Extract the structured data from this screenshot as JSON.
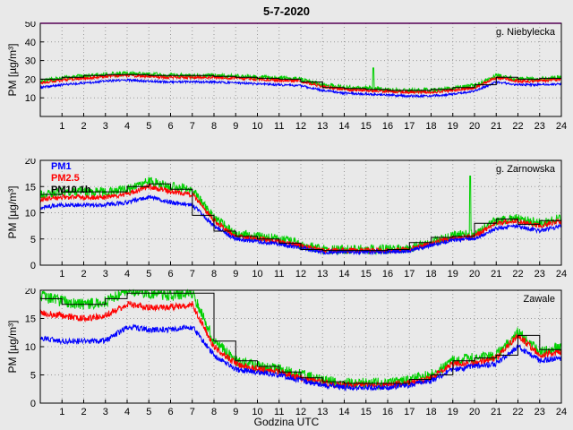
{
  "chart_data": {
    "type": "line",
    "title": "5-7-2020",
    "xlabel": "Godzina UTC",
    "ylabel": "PM [µg/m³]",
    "x_unit": "hour of day (UTC), 0-24",
    "xticks": [
      1,
      2,
      3,
      4,
      5,
      6,
      7,
      8,
      9,
      10,
      11,
      12,
      13,
      14,
      15,
      16,
      17,
      18,
      19,
      20,
      21,
      22,
      23,
      24
    ],
    "colors": {
      "grid": "#999999",
      "limit": "#ff00ff",
      "pm1": "#0000ff",
      "pm25": "#ff0000",
      "pm10": "#00d000",
      "pm10_1h": "#000000"
    },
    "legend": [
      {
        "label": "PM1",
        "color": "#0000ff"
      },
      {
        "label": "PM2.5",
        "color": "#ff0000"
      },
      {
        "label": "PM10 1h",
        "color": "#000000"
      }
    ],
    "panels": [
      {
        "station": "g. Niebylecka",
        "ylim": [
          0,
          50
        ],
        "yticks": [
          10,
          20,
          30,
          40,
          50
        ],
        "limit_line": 50,
        "series": [
          {
            "name": "PM10",
            "color": "#00d000",
            "noise": 1.3,
            "anchors": [
              19,
              20.5,
              21.5,
              22.5,
              23,
              22.5,
              22,
              22,
              22,
              21.5,
              21,
              20.5,
              20,
              17,
              15.5,
              15,
              14.5,
              14,
              14,
              15,
              16.5,
              22,
              20,
              20,
              21
            ],
            "spikes": [
              {
                "t": 15.35,
                "v": 26
              }
            ]
          },
          {
            "name": "PM2.5",
            "color": "#ff0000",
            "noise": 0.8,
            "anchors": [
              18,
              19.5,
              20.5,
              21.5,
              22,
              21.5,
              21,
              21,
              21,
              20.5,
              20,
              19.5,
              19,
              16,
              14.5,
              14,
              13.5,
              13,
              13,
              14,
              15.5,
              21,
              19,
              19,
              20
            ]
          },
          {
            "name": "PM1",
            "color": "#0000ff",
            "noise": 0.6,
            "anchors": [
              15.5,
              17,
              18,
              19,
              19.5,
              19,
              18.5,
              18.5,
              18.5,
              18,
              17.5,
              17,
              16.5,
              14,
              12.5,
              12,
              11.5,
              11,
              11,
              12,
              13.5,
              18.5,
              17,
              17,
              17.5
            ]
          },
          {
            "name": "PM10 1h",
            "color": "#000000",
            "type": "step",
            "values": [
              20,
              21,
              22,
              22.5,
              22.5,
              22,
              22,
              22,
              21.5,
              21,
              20.5,
              20,
              18.5,
              15.5,
              15,
              14.5,
              14,
              14,
              14.5,
              15.5,
              17,
              21,
              20,
              20.5
            ]
          }
        ]
      },
      {
        "station": "g. Zarnowska",
        "ylim": [
          0,
          20
        ],
        "yticks": [
          0,
          5,
          10,
          15,
          20
        ],
        "limit_line": null,
        "series": [
          {
            "name": "PM10",
            "color": "#00d000",
            "noise": 0.9,
            "anchors": [
              13.5,
              14,
              14,
              14,
              14.5,
              16,
              15,
              14.5,
              9,
              6,
              5.5,
              5,
              4,
              3,
              3,
              3,
              3,
              3.2,
              4.5,
              5.5,
              6,
              8.5,
              9,
              8,
              9
            ],
            "spikes": [
              {
                "t": 19.8,
                "v": 17
              }
            ]
          },
          {
            "name": "PM2.5",
            "color": "#ff0000",
            "noise": 0.5,
            "anchors": [
              12.5,
              13,
              13,
              13,
              13.5,
              15,
              14,
              13.5,
              8.5,
              5.5,
              5,
              4.5,
              3.7,
              2.8,
              2.8,
              2.8,
              2.8,
              3,
              4.2,
              5.2,
              5.5,
              8,
              8.5,
              7.5,
              8.5
            ]
          },
          {
            "name": "PM1",
            "color": "#0000ff",
            "noise": 0.4,
            "anchors": [
              11,
              11.5,
              11.5,
              11.5,
              12,
              13,
              12,
              11.5,
              7.5,
              5,
              4.5,
              4,
              3.3,
              2.5,
              2.5,
              2.5,
              2.5,
              2.7,
              3.8,
              4.8,
              5,
              7,
              7.5,
              6.5,
              7.5
            ]
          },
          {
            "name": "PM10 1h",
            "color": "#000000",
            "type": "step",
            "values": [
              13.5,
              14,
              14,
              14,
              15,
              15.5,
              14.5,
              9.5,
              6.5,
              5.5,
              5,
              4.2,
              3,
              2.8,
              2.8,
              2.8,
              3,
              4.3,
              5.3,
              5.5,
              8,
              8.8,
              7.8,
              8.5
            ]
          }
        ]
      },
      {
        "station": "Zawale",
        "ylim": [
          0,
          20
        ],
        "yticks": [
          0,
          5,
          10,
          15,
          20
        ],
        "limit_line": null,
        "series": [
          {
            "name": "PM10",
            "color": "#00d000",
            "noise": 1.0,
            "anchors": [
              19,
              18,
              17.5,
              18,
              20,
              19.5,
              19,
              19.5,
              11,
              7.5,
              6.5,
              6,
              5,
              4,
              3.5,
              3.5,
              3.5,
              4,
              5,
              7.5,
              8,
              8.5,
              12.5,
              9,
              10
            ]
          },
          {
            "name": "PM2.5",
            "color": "#ff0000",
            "noise": 0.6,
            "anchors": [
              16,
              15.5,
              15,
              15.5,
              17.5,
              17,
              17,
              17.5,
              10,
              7,
              6,
              5.5,
              4.5,
              3.6,
              3.2,
              3.2,
              3.2,
              3.6,
              4.5,
              7,
              7,
              8,
              12,
              8.5,
              9
            ]
          },
          {
            "name": "PM1",
            "color": "#0000ff",
            "noise": 0.5,
            "anchors": [
              11.5,
              11,
              11,
              11,
              13.5,
              13,
              13,
              13.5,
              8.5,
              6,
              5.5,
              5,
              4,
              3.2,
              2.8,
              2.8,
              2.8,
              3.2,
              4,
              6,
              6.5,
              7,
              10,
              7.5,
              8
            ]
          },
          {
            "name": "PM10 1h",
            "color": "#000000",
            "type": "step",
            "values": [
              18.5,
              17.5,
              17.5,
              18.5,
              19.5,
              19.5,
              19.5,
              19.5,
              11,
              7.5,
              6.5,
              5.5,
              4.5,
              3.8,
              3.5,
              3.5,
              3.5,
              4.2,
              5,
              7.5,
              8,
              8.5,
              12,
              9.5
            ]
          }
        ]
      }
    ]
  }
}
